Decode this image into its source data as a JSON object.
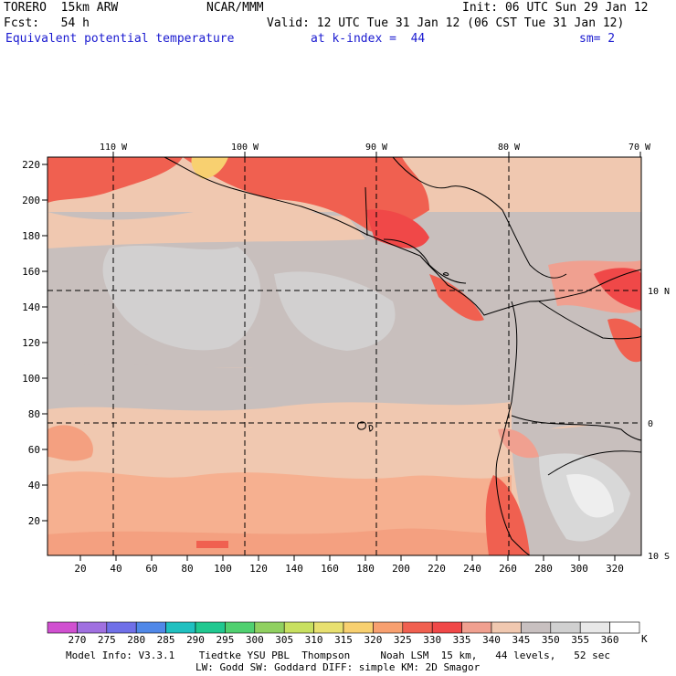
{
  "header": {
    "model": "TORERO  15km ARW",
    "org": "NCAR/MMM",
    "init": "Init: 06 UTC Sun 29 Jan 12",
    "fcst": "Fcst:   54 h",
    "valid": "Valid: 12 UTC Tue 31 Jan 12 (06 CST Tue 31 Jan 12)",
    "field": "Equivalent potential temperature",
    "level": "at k-index =  44",
    "smooth": "sm= 2"
  },
  "top_lon_labels": [
    "110 W",
    "100 W",
    "90 W",
    "80 W",
    "70 W"
  ],
  "right_lat_labels": [
    "10 N",
    "0",
    "10 S"
  ],
  "y_ticks": [
    "220",
    "200",
    "180",
    "160",
    "140",
    "120",
    "100",
    "80",
    "60",
    "40",
    "20"
  ],
  "x_ticks": [
    "20",
    "40",
    "60",
    "80",
    "100",
    "120",
    "140",
    "160",
    "180",
    "200",
    "220",
    "240",
    "260",
    "280",
    "300",
    "320"
  ],
  "colorbar": {
    "labels": [
      "270",
      "275",
      "280",
      "285",
      "290",
      "295",
      "300",
      "305",
      "310",
      "315",
      "320",
      "325",
      "330",
      "335",
      "340",
      "345",
      "350",
      "355",
      "360"
    ],
    "unit": "K",
    "colors": [
      "#d050d0",
      "#a070e0",
      "#7070e8",
      "#5088e8",
      "#20c0c0",
      "#20c890",
      "#50d070",
      "#90d060",
      "#c8e060",
      "#e8e070",
      "#f8d070",
      "#f8a070",
      "#f06050",
      "#f04848",
      "#f0a090",
      "#f0c8b0",
      "#c8c0c0",
      "#d0d0d0",
      "#e8e8e8",
      "#ffffff"
    ]
  },
  "footer": {
    "line1": "Model Info: V3.3.1    Tiedtke YSU PBL  Thompson     Noah LSM  15 km,   44 levels,   52 sec",
    "line2": "LW: Godd SW: Goddard DIFF: simple KM: 2D Smagor"
  }
}
